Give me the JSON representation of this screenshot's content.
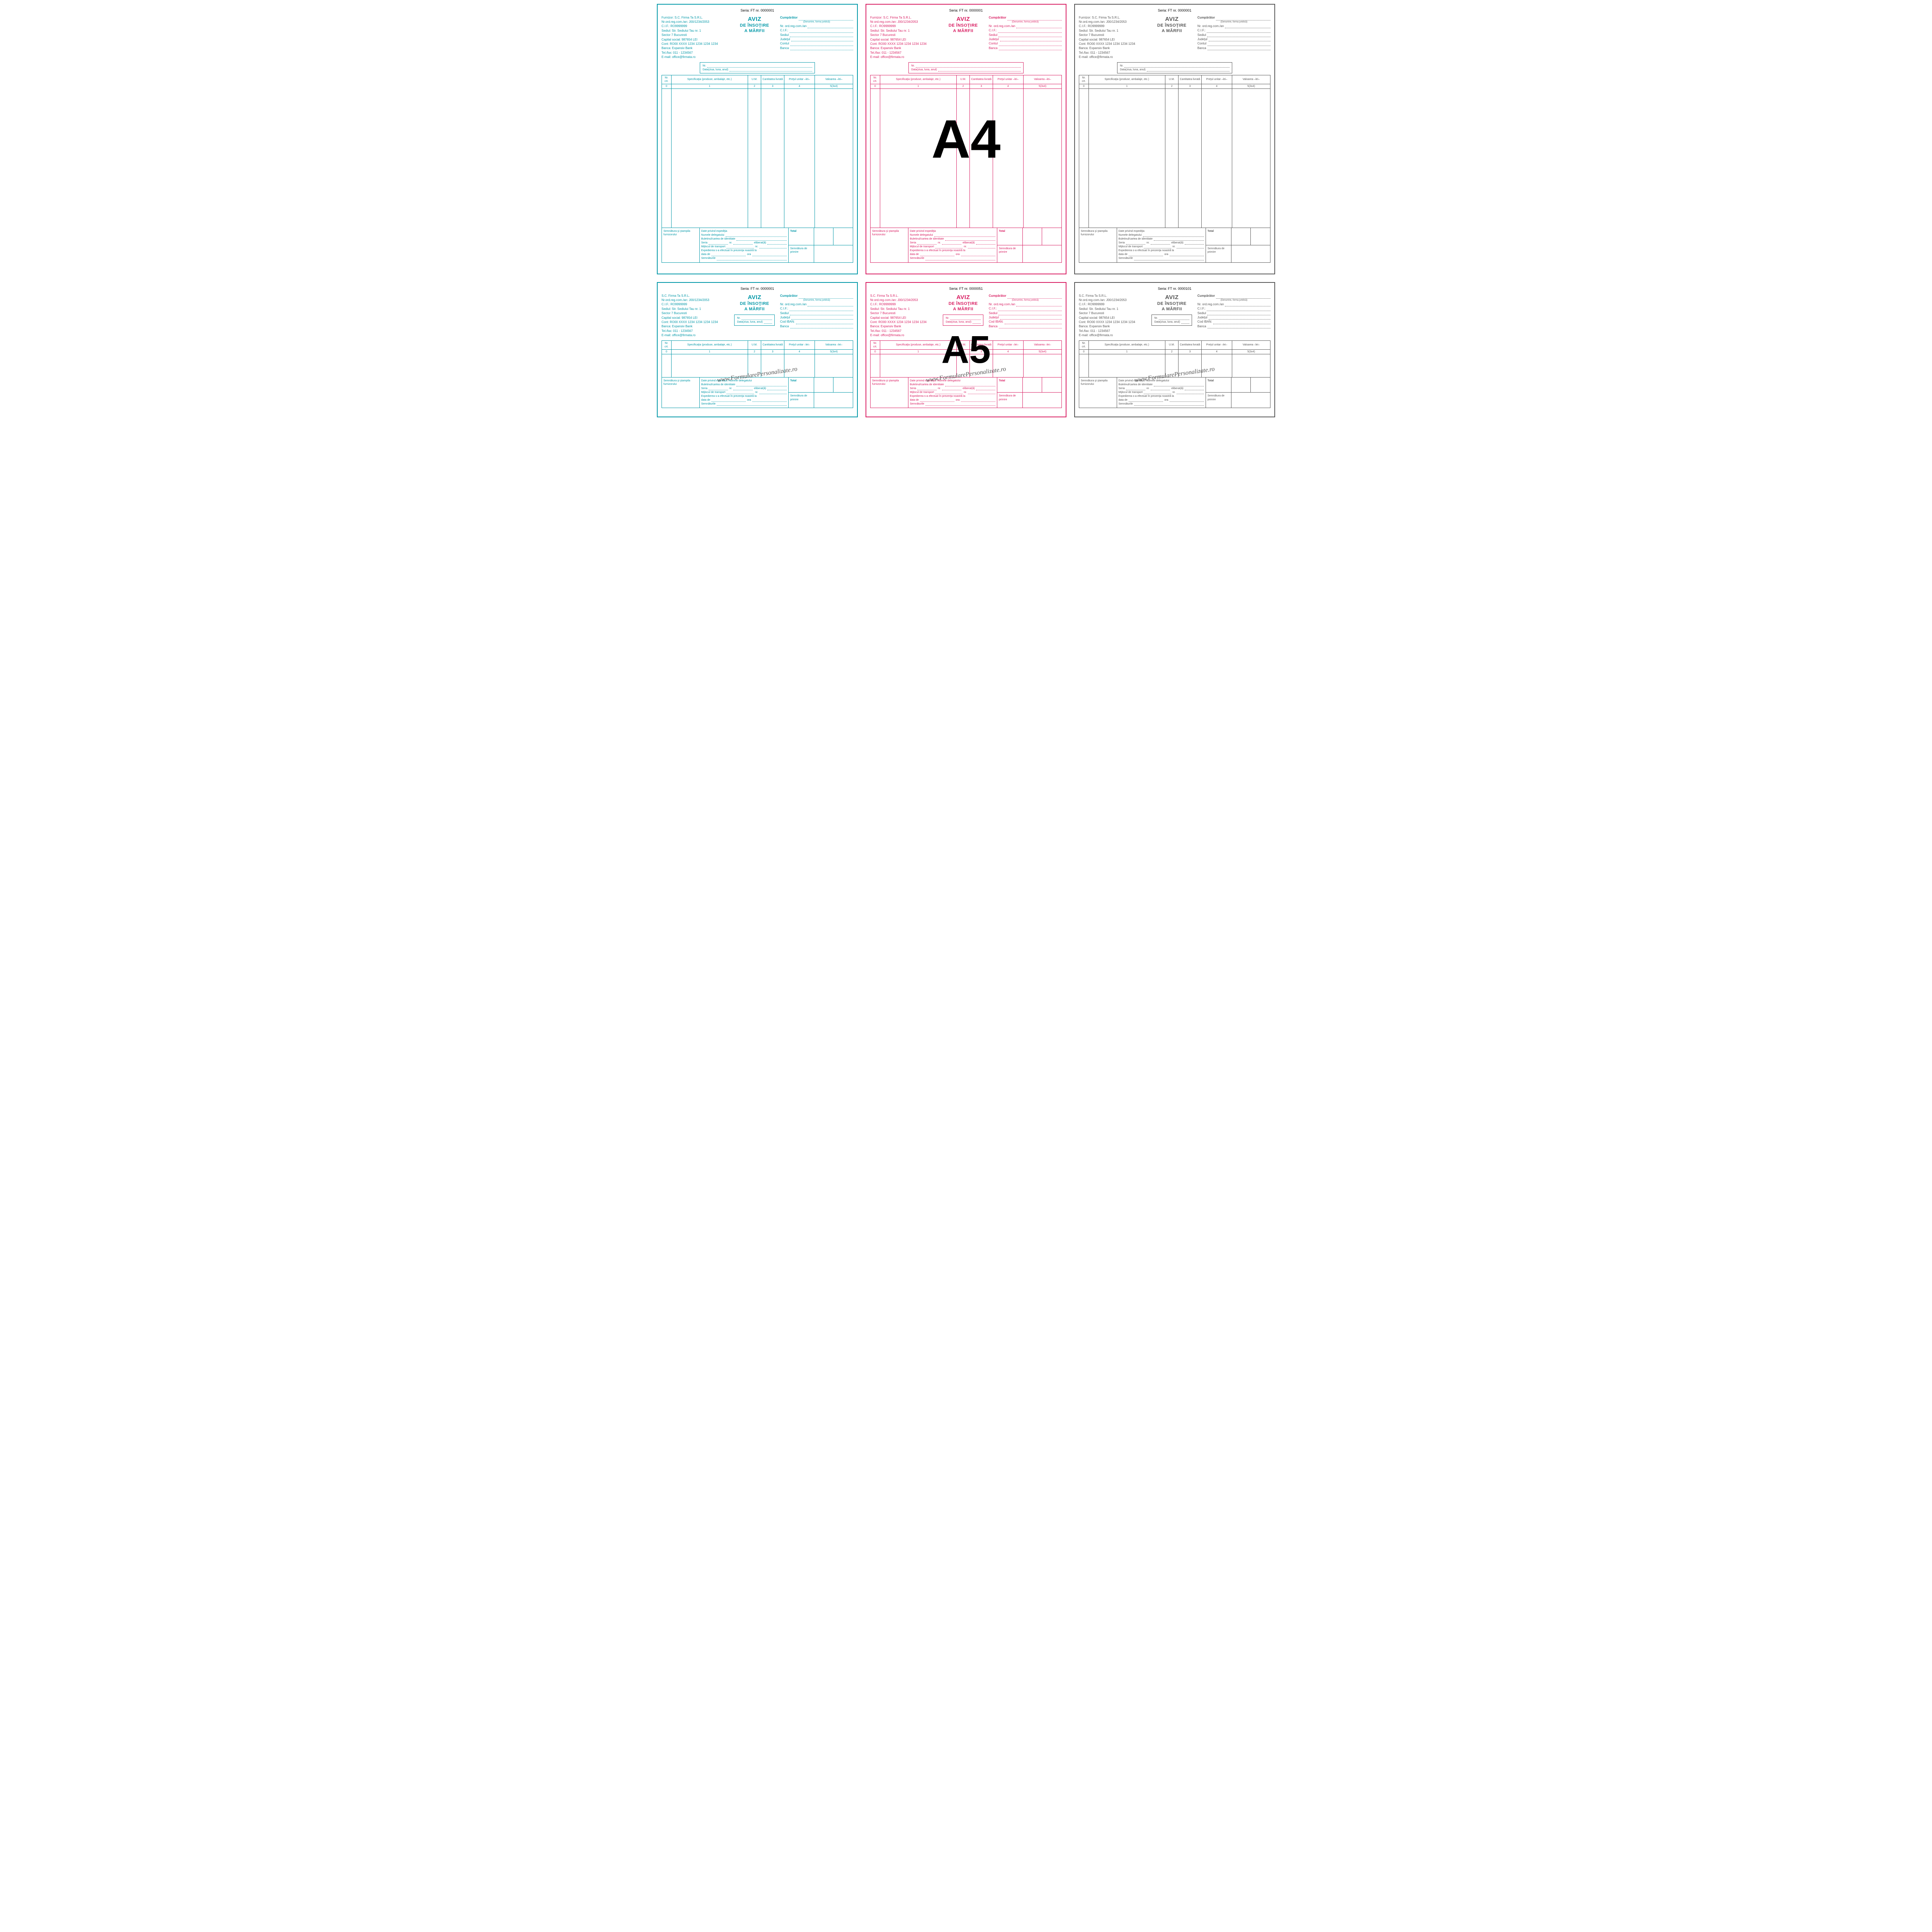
{
  "colors": {
    "teal": "#0097a7",
    "magenta": "#d81b60",
    "grey": "#555555"
  },
  "title_line1": "AVIZ",
  "title_line2": "DE ÎNSOŢIRE",
  "title_line3": "A MĂRFII",
  "serial_prefix": "Seria: FT nr.",
  "supplier": {
    "l0": "Furnizor: S.C. Firma Ta S.R.L.",
    "l0b": "S.C. Firma Ta S.R.L.",
    "l1": "Nr.ord.reg.com./an: J00/1234/2053",
    "l2": "C.I.F.: RO9999999",
    "l3": "Sediul: Str. Sediului Tau  nr. 1",
    "l4": "Sector 7  Bucuresti",
    "l5": "Capital social:  987654 LEI",
    "l6": "Cont: RO00 XXXX 1234 1234 1234 1234",
    "l7": "Banca: Expansiv Bank",
    "l8": "Tel./fax: 011 - 1234567",
    "l9": "E-mail: office@firmata.ro"
  },
  "buyer": {
    "title": "Cumpărător",
    "denom": "(Denumire, forma juridică)",
    "nrord": "Nr. ord.reg.com./an",
    "cif": "C.I.F.:",
    "sediul": "Sediul",
    "judetul": "Judeţul",
    "contul": "Contul",
    "codiban": "Cod IBAN:",
    "banca": "Banca"
  },
  "nrbox": {
    "nr": "Nr.",
    "data": "Data(ziua, luna, anul)"
  },
  "table": {
    "h0": "Nr. crt.",
    "h1": "Specificaţia\n(produse, ambalaje, etc.)",
    "h2": "U.M.",
    "h3": "Cantitatea livrată",
    "h4": "Preţul unitar\n–lei–",
    "h5": "Valoarea\n–lei–",
    "n0": "0",
    "n1": "1",
    "n2": "2",
    "n3": "3",
    "n4": "4",
    "n5": "5(3x4)"
  },
  "footer": {
    "sig": "Semnătura şi ştampila furnizorului",
    "ship_title": "Date privind expediţia",
    "ship_a": "Numele delegatului",
    "ship_b": "Buletinul/cartea de identitate",
    "ship_c": "Seria",
    "ship_c2": "nr.",
    "ship_c3": "eliberat(ă)",
    "ship_d": "Mijlocul de transport",
    "ship_d2": "nr.",
    "ship_e": "Expedierea s-a efectuat în  prezenţa noastră la",
    "ship_f": "data de",
    "ship_f2": "ora",
    "ship_g": "Semnăturile",
    "total": "Total",
    "recv": "Semnătura de primire"
  },
  "overlays": {
    "a4": "A4",
    "a5": "A5"
  },
  "watermark": "www.FormularePersonalizate.ro",
  "forms": [
    {
      "size": "a4",
      "color": "teal",
      "serial": "0000001",
      "overlay": "",
      "wm": ""
    },
    {
      "size": "a4",
      "color": "magenta",
      "serial": "0000001",
      "overlay": "a4",
      "wm": ""
    },
    {
      "size": "a4",
      "color": "grey",
      "serial": "0000001",
      "overlay": "",
      "wm": ""
    },
    {
      "size": "a5",
      "color": "teal",
      "serial": "0000001",
      "overlay": "",
      "wm": "1"
    },
    {
      "size": "a5",
      "color": "magenta",
      "serial": "0000051",
      "overlay": "a5",
      "wm": "1"
    },
    {
      "size": "a5",
      "color": "grey",
      "serial": "0000101",
      "overlay": "",
      "wm": "1"
    }
  ]
}
